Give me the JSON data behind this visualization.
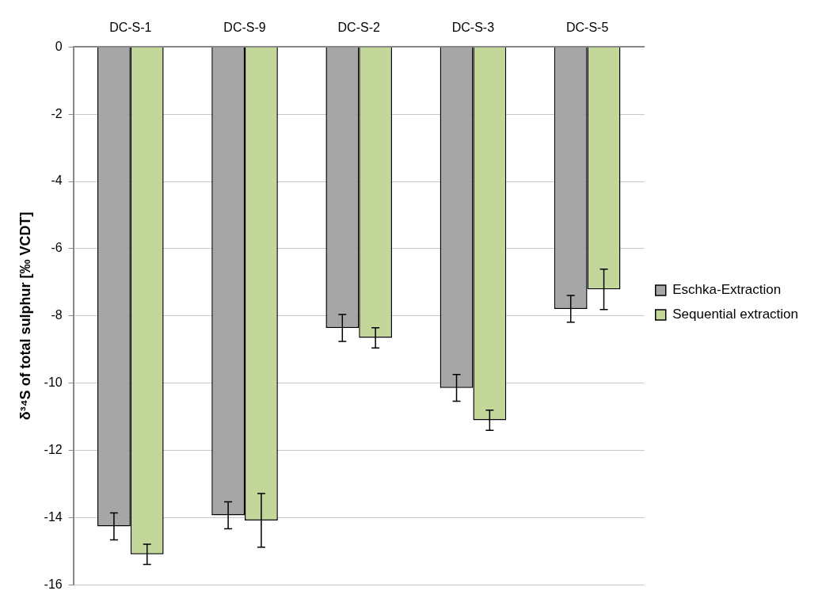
{
  "chart_data": {
    "type": "bar",
    "ylabel": "δ³⁴S of total sulphur [‰ VCDT]",
    "categories": [
      "DC-S-1",
      "DC-S-9",
      "DC-S-2",
      "DC-S-3",
      "DC-S-5"
    ],
    "series": [
      {
        "name": "Eschka-Extraction",
        "color": "#a6a6a6",
        "values": [
          -14.26,
          -13.93,
          -8.36,
          -10.14,
          -7.79
        ],
        "errors": [
          0.4,
          0.4,
          0.4,
          0.4,
          0.4
        ]
      },
      {
        "name": "Sequential extraction",
        "color": "#c4d79b",
        "values": [
          -15.09,
          -14.08,
          -8.65,
          -11.1,
          -7.21
        ],
        "errors": [
          0.3,
          0.8,
          0.3,
          0.3,
          0.6
        ]
      }
    ],
    "ylim": [
      -16,
      0
    ],
    "yticks": [
      -16,
      -14,
      -12,
      -10,
      -8,
      -6,
      -4,
      -2,
      0
    ],
    "grid": "y",
    "legend": "right"
  }
}
